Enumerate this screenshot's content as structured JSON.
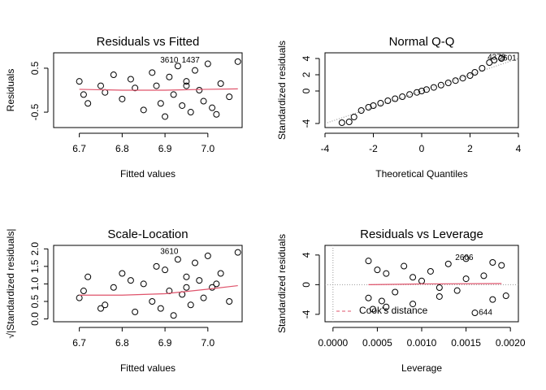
{
  "chart_data": [
    {
      "type": "scatter",
      "title": "Residuals vs Fitted",
      "x_label": "Fitted values",
      "y_label": "Residuals",
      "xlim": [
        6.64,
        7.08
      ],
      "ylim": [
        -0.85,
        0.85
      ],
      "xticks": [
        6.7,
        6.8,
        6.9,
        {
          "value": 7,
          "label": "7.0"
        }
      ],
      "yticks": [
        -0.5,
        0.5
      ],
      "points": {
        "x": [
          6.7,
          6.72,
          6.75,
          6.78,
          6.8,
          6.83,
          6.85,
          6.87,
          6.88,
          6.9,
          6.91,
          6.92,
          6.93,
          6.94,
          6.95,
          6.96,
          6.97,
          6.98,
          6.99,
          7.0,
          7.01,
          7.03,
          7.05,
          7.07,
          6.71,
          6.76,
          6.82,
          6.89,
          6.95,
          7.02
        ],
        "y": [
          0.2,
          -0.3,
          0.1,
          0.35,
          -0.2,
          0.05,
          -0.45,
          0.4,
          0.1,
          -0.6,
          0.3,
          -0.1,
          0.55,
          -0.35,
          0.2,
          -0.5,
          0.45,
          0.0,
          -0.25,
          0.6,
          -0.4,
          0.15,
          -0.15,
          0.65,
          -0.1,
          -0.05,
          0.25,
          -0.3,
          0.1,
          -0.55
        ]
      },
      "smooth": {
        "color": "#df536b",
        "x": [
          6.7,
          6.8,
          6.9,
          7.0,
          7.07
        ],
        "y": [
          0.02,
          0.0,
          0.0,
          0.02,
          0.03
        ]
      },
      "annotations": [
        {
          "text": "3610",
          "x": 6.91,
          "y": 0.68
        },
        {
          "text": "1437",
          "x": 6.96,
          "y": 0.68
        }
      ]
    },
    {
      "type": "scatter",
      "title": "Normal Q-Q",
      "x_label": "Theoretical Quantiles",
      "y_label": "Standardized residuals",
      "xlim": [
        -4,
        4
      ],
      "ylim": [
        -4.5,
        4.7
      ],
      "xticks": [
        -4,
        -2,
        0,
        2,
        4
      ],
      "yticks": [
        -4,
        0,
        2,
        4
      ],
      "points": {
        "x": [
          -3.3,
          -3.0,
          -2.8,
          -2.5,
          -2.2,
          -2.0,
          -1.7,
          -1.4,
          -1.1,
          -0.8,
          -0.5,
          -0.2,
          0,
          0.2,
          0.5,
          0.8,
          1.1,
          1.4,
          1.7,
          2.0,
          2.2,
          2.5,
          2.8,
          3.0,
          3.3
        ],
        "y": [
          -3.9,
          -3.8,
          -3.2,
          -2.4,
          -2.0,
          -1.8,
          -1.5,
          -1.2,
          -0.95,
          -0.7,
          -0.42,
          -0.17,
          0,
          0.18,
          0.44,
          0.72,
          1.0,
          1.28,
          1.58,
          1.9,
          2.3,
          2.8,
          3.5,
          3.8,
          4.0
        ]
      },
      "refline": {
        "x": [
          -4,
          4
        ],
        "y": [
          -4,
          4
        ]
      },
      "annotations": [
        {
          "text": "4379",
          "x": 3.1,
          "y": 4.1
        },
        {
          "text": "2601",
          "x": 3.55,
          "y": 4.0
        }
      ]
    },
    {
      "type": "scatter",
      "title": "Scale-Location",
      "x_label": "Fitted values",
      "y_label": "√|Standardized residuals|",
      "xlim": [
        6.64,
        7.08
      ],
      "ylim": [
        -0.08,
        2.1
      ],
      "xticks": [
        6.7,
        6.8,
        6.9,
        {
          "value": 7,
          "label": "7.0"
        }
      ],
      "yticks": [
        {
          "value": 0,
          "label": "0.0"
        },
        0.5,
        {
          "value": 1,
          "label": "1.0"
        },
        1.5,
        {
          "value": 2,
          "label": "2.0"
        }
      ],
      "points": {
        "x": [
          6.7,
          6.72,
          6.75,
          6.78,
          6.8,
          6.83,
          6.85,
          6.87,
          6.88,
          6.9,
          6.91,
          6.92,
          6.93,
          6.94,
          6.95,
          6.96,
          6.97,
          6.98,
          6.99,
          7.0,
          7.01,
          7.03,
          7.05,
          7.07,
          6.71,
          6.76,
          6.82,
          6.89,
          6.95,
          7.02
        ],
        "y": [
          0.6,
          1.2,
          0.3,
          0.9,
          1.3,
          0.2,
          1.0,
          0.5,
          1.5,
          1.4,
          0.8,
          0.1,
          1.7,
          0.7,
          1.2,
          0.4,
          1.6,
          1.1,
          0.6,
          1.8,
          0.9,
          1.3,
          0.5,
          1.9,
          0.8,
          0.4,
          1.1,
          0.3,
          0.9,
          1.0
        ]
      },
      "smooth": {
        "color": "#df536b",
        "x": [
          6.7,
          6.8,
          6.9,
          7.0,
          7.07
        ],
        "y": [
          0.68,
          0.68,
          0.72,
          0.85,
          0.95
        ]
      },
      "annotations": [
        {
          "text": "3610",
          "x": 6.91,
          "y": 1.92
        }
      ]
    },
    {
      "type": "scatter",
      "title": "Residuals vs Leverage",
      "x_label": "Leverage",
      "y_label": "Standardized residuals",
      "xlim": [
        -9e-05,
        0.00209
      ],
      "ylim": [
        -5,
        5.3
      ],
      "xticks": [
        {
          "value": 0,
          "label": "0.0000"
        },
        0.0005,
        {
          "value": 0.001,
          "label": "0.0010"
        },
        0.0015,
        {
          "value": 0.002,
          "label": "0.0020"
        }
      ],
      "yticks": [
        -4,
        0,
        4
      ],
      "points": {
        "x": [
          0.0004,
          0.00045,
          0.0005,
          0.00055,
          0.0006,
          0.0007,
          0.0008,
          0.0009,
          0.001,
          0.0011,
          0.0012,
          0.0013,
          0.0014,
          0.0015,
          0.0016,
          0.0017,
          0.0018,
          0.0019,
          0.00195,
          0.0004,
          0.0006,
          0.0009,
          0.0012,
          0.0015,
          0.0018
        ],
        "y": [
          3.2,
          -3.3,
          2.0,
          -2.2,
          1.5,
          -1.0,
          2.5,
          -2.6,
          0.5,
          1.8,
          -1.6,
          2.8,
          -0.8,
          3.5,
          -3.8,
          1.2,
          -2.0,
          2.6,
          -1.5,
          -1.8,
          -3.0,
          1.0,
          -0.4,
          0.8,
          3.0
        ]
      },
      "smooth": {
        "color": "#df536b",
        "x": [
          0.0004,
          0.001,
          0.0019
        ],
        "y": [
          0,
          0.1,
          0.15
        ]
      },
      "legend": {
        "label": "Cook's distance",
        "color": "#df536b"
      },
      "annotations": [
        {
          "text": "2606",
          "x": 0.00148,
          "y": 3.6
        },
        {
          "text": "644",
          "x": 0.00172,
          "y": -3.8
        }
      ]
    }
  ]
}
